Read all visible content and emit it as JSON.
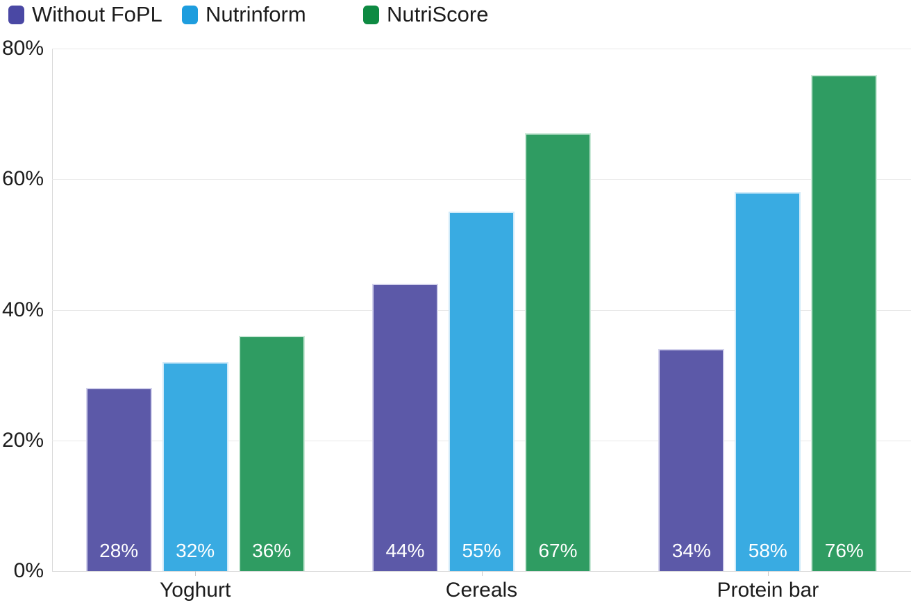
{
  "legend": {
    "items": [
      {
        "label": "Without FoPL",
        "color": "#4a48a4"
      },
      {
        "label": "Nutrinform",
        "color": "#1e9dde"
      },
      {
        "label": "NutriScore",
        "color": "#0e8a42"
      }
    ]
  },
  "chart_data": {
    "type": "bar",
    "title": "",
    "xlabel": "",
    "ylabel": "",
    "categories": [
      "Yoghurt",
      "Cereals",
      "Protein bar"
    ],
    "series": [
      {
        "name": "Without FoPL",
        "color": "#5c59a8",
        "edge_color": "#d3d2ec",
        "values": [
          28,
          44,
          34
        ]
      },
      {
        "name": "Nutrinform",
        "color": "#39abe2",
        "edge_color": "#cfeaf9",
        "values": [
          32,
          55,
          58
        ]
      },
      {
        "name": "NutriScore",
        "color": "#2f9c62",
        "edge_color": "#cbe9d8",
        "values": [
          36,
          67,
          76
        ]
      }
    ],
    "value_label_suffix": "%",
    "value_labels_position": "inside-bottom",
    "y_axis": {
      "min": 0,
      "max": 80,
      "ticks": [
        0,
        20,
        40,
        60,
        80
      ],
      "tick_labels": [
        "0%",
        "20%",
        "40%",
        "60%",
        "80%"
      ]
    },
    "grid": true,
    "legend_position": "top-left"
  }
}
